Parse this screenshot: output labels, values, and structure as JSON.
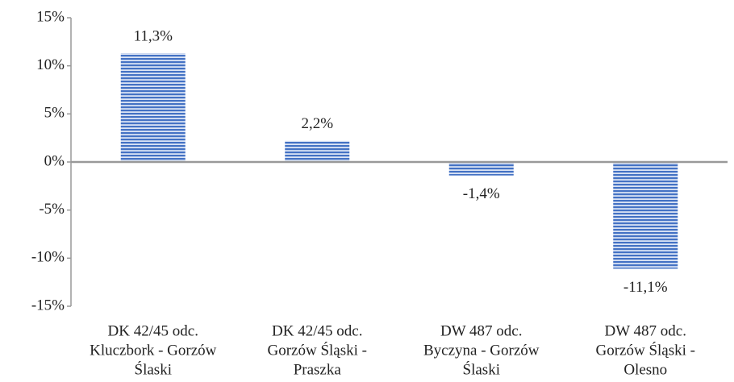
{
  "chart_data": {
    "type": "bar",
    "categories": [
      [
        "DK 42/45 odc.",
        "Kluczbork - Gorzów",
        "Ślaski"
      ],
      [
        "DK 42/45 odc.",
        "Gorzów Śląski -",
        "Praszka"
      ],
      [
        "DW 487 odc.",
        "Byczyna - Gorzów",
        "Ślaski"
      ],
      [
        "DW 487 odc.",
        "Gorzów Śląski -",
        "Olesno"
      ]
    ],
    "values": [
      11.3,
      2.2,
      -1.4,
      -11.1
    ],
    "value_labels": [
      "11,3%",
      "2,2%",
      "-1,4%",
      "-11,1%"
    ],
    "color": "#4472c4",
    "ylim": [
      -15,
      15
    ],
    "yticks": [
      {
        "value": -15,
        "label": "-15%"
      },
      {
        "value": -10,
        "label": "-10%"
      },
      {
        "value": -5,
        "label": "-5%"
      },
      {
        "value": 0,
        "label": "0%"
      },
      {
        "value": 5,
        "label": "5%"
      },
      {
        "value": 10,
        "label": "10%"
      },
      {
        "value": 15,
        "label": "15%"
      }
    ],
    "grid": false
  }
}
